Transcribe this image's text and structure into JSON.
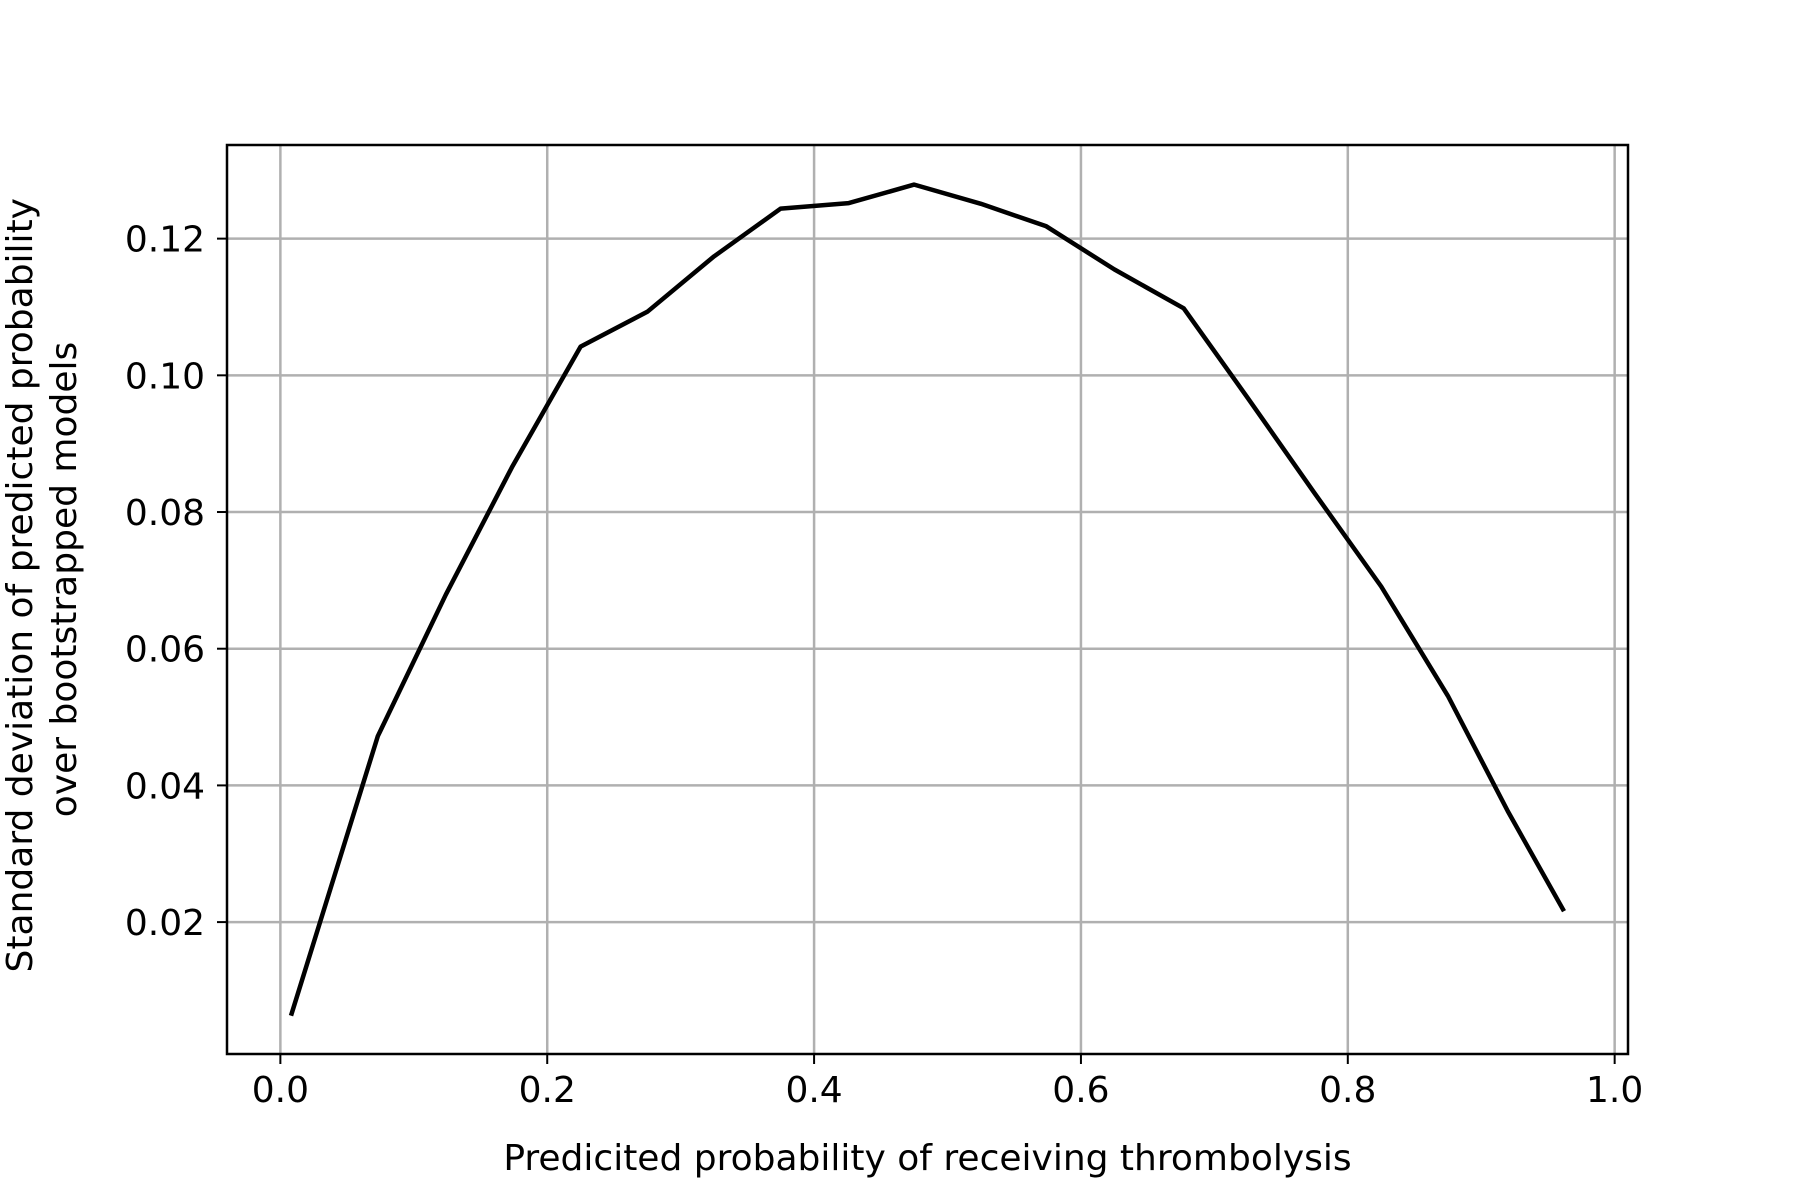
{
  "chart_data": {
    "type": "line",
    "title": "",
    "xlabel": "Predicited probability of receiving thrombolysis",
    "ylabel_lines": [
      "Standard deviation of predicted probability",
      "over bootstrapped models"
    ],
    "xlim": [
      -0.04,
      1.01
    ],
    "ylim": [
      0.0007,
      0.1337
    ],
    "xticks": [
      0.0,
      0.2,
      0.4,
      0.6,
      0.8,
      1.0
    ],
    "xtick_labels": [
      "0.0",
      "0.2",
      "0.4",
      "0.6",
      "0.8",
      "1.0"
    ],
    "yticks": [
      0.02,
      0.04,
      0.06,
      0.08,
      0.1,
      0.12
    ],
    "ytick_labels": [
      "0.02",
      "0.04",
      "0.06",
      "0.08",
      "0.10",
      "0.12"
    ],
    "grid": true,
    "series": [
      {
        "color": "#000000",
        "x": [
          0.008,
          0.073,
          0.124,
          0.174,
          0.225,
          0.275,
          0.325,
          0.375,
          0.426,
          0.475,
          0.525,
          0.574,
          0.625,
          0.677,
          0.725,
          0.775,
          0.825,
          0.875,
          0.92,
          0.962
        ],
        "y": [
          0.0063,
          0.0472,
          0.0679,
          0.0867,
          0.1042,
          0.1093,
          0.1174,
          0.1244,
          0.1252,
          0.1279,
          0.1251,
          0.1218,
          0.1155,
          0.1098,
          0.0967,
          0.0828,
          0.0691,
          0.0531,
          0.0362,
          0.0216
        ]
      }
    ]
  }
}
